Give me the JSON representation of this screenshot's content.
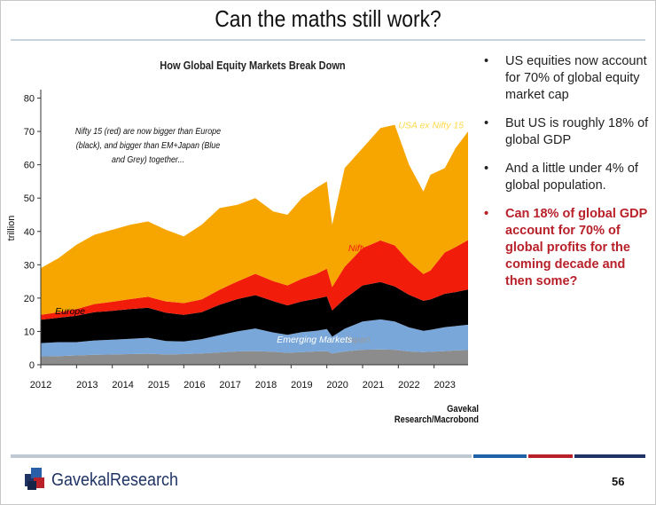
{
  "slide": {
    "title": "Can the maths still work?",
    "page_number": "56"
  },
  "bullets": [
    {
      "text": "US equities now account for 70% of global equity market cap",
      "highlight": false
    },
    {
      "text": "But US is roughly 18% of global GDP",
      "highlight": false
    },
    {
      "text": "And a little under 4% of global population.",
      "highlight": false
    },
    {
      "text": "Can 18% of global GDP account for 70% of global profits for the coming decade and then some?",
      "highlight": true
    }
  ],
  "footer": {
    "logo_text": "GavekalResearch",
    "bar_colors": [
      "#bfc9d3",
      "#1f62a8",
      "#b8202a",
      "#1f3364"
    ]
  },
  "chart_data": {
    "type": "area",
    "stacked": true,
    "title": "How Global Equity Markets Break Down",
    "ylabel": "trillion",
    "xlabel": "",
    "ylim": [
      0,
      82
    ],
    "yticks": [
      0,
      10,
      20,
      30,
      40,
      50,
      60,
      70,
      80
    ],
    "xlim": [
      2012.0,
      2023.95
    ],
    "xticks": [
      "2012",
      "2013",
      "2014",
      "2015",
      "2016",
      "2017",
      "2018",
      "2019",
      "2020",
      "2021",
      "2022",
      "2023"
    ],
    "grid": false,
    "source": "Gavekal Research/Macrobond",
    "annotation": "Nifty 15 (red) are now bigger than Europe (black), and bigger than EM+Japan (Blue and Grey) together...",
    "x": [
      2012.0,
      2012.5,
      2013.0,
      2013.5,
      2014.0,
      2014.5,
      2015.0,
      2015.5,
      2016.0,
      2016.5,
      2017.0,
      2017.5,
      2018.0,
      2018.5,
      2018.9,
      2019.3,
      2019.7,
      2020.0,
      2020.15,
      2020.5,
      2021.0,
      2021.5,
      2021.9,
      2022.3,
      2022.7,
      2022.9,
      2023.3,
      2023.6,
      2023.95
    ],
    "series": [
      {
        "name": "Japan",
        "color": "#8c8c8c",
        "values": [
          2.5,
          2.6,
          2.8,
          3.0,
          3.1,
          3.2,
          3.3,
          3.1,
          3.2,
          3.4,
          3.7,
          4.0,
          4.1,
          3.9,
          3.6,
          3.8,
          4.0,
          4.1,
          3.4,
          4.0,
          4.5,
          4.6,
          4.5,
          4.0,
          3.8,
          3.9,
          4.1,
          4.3,
          4.4
        ]
      },
      {
        "name": "Emerging Markets",
        "color": "#7aa7d9",
        "values": [
          4.0,
          4.2,
          4.0,
          4.3,
          4.4,
          4.6,
          4.8,
          4.0,
          3.8,
          4.3,
          5.2,
          6.0,
          6.8,
          5.8,
          5.4,
          6.0,
          6.2,
          6.6,
          5.0,
          6.8,
          8.5,
          9.0,
          8.5,
          7.2,
          6.4,
          6.6,
          7.2,
          7.3,
          7.6
        ]
      },
      {
        "name": "Europe",
        "color": "#000000",
        "values": [
          7.0,
          7.3,
          7.9,
          8.5,
          8.7,
          8.9,
          9.0,
          8.5,
          8.0,
          8.1,
          9.1,
          9.7,
          10.0,
          9.4,
          8.8,
          9.2,
          9.6,
          9.8,
          7.9,
          9.0,
          10.8,
          11.2,
          10.5,
          9.8,
          9.0,
          9.1,
          10.0,
          10.2,
          10.6
        ]
      },
      {
        "name": "Nifty 15",
        "color": "#f21c0a",
        "values": [
          1.5,
          1.7,
          2.0,
          2.4,
          2.7,
          3.0,
          3.3,
          3.4,
          3.5,
          3.8,
          4.5,
          5.3,
          6.4,
          6.0,
          6.0,
          6.8,
          7.4,
          8.3,
          7.0,
          9.6,
          11.2,
          12.5,
          12.3,
          10.0,
          8.0,
          8.7,
          12.4,
          13.5,
          14.8
        ]
      },
      {
        "name": "USA ex Nifty 15",
        "color": "#f7a600",
        "values": [
          14.0,
          16.2,
          19.3,
          20.8,
          21.6,
          22.3,
          22.6,
          21.5,
          20.0,
          22.4,
          24.5,
          23.0,
          22.7,
          20.9,
          21.2,
          24.2,
          25.8,
          26.2,
          18.7,
          29.6,
          30.0,
          33.7,
          36.2,
          29.0,
          24.8,
          28.7,
          25.3,
          29.7,
          32.6
        ]
      }
    ],
    "series_label_positions": {}
  }
}
